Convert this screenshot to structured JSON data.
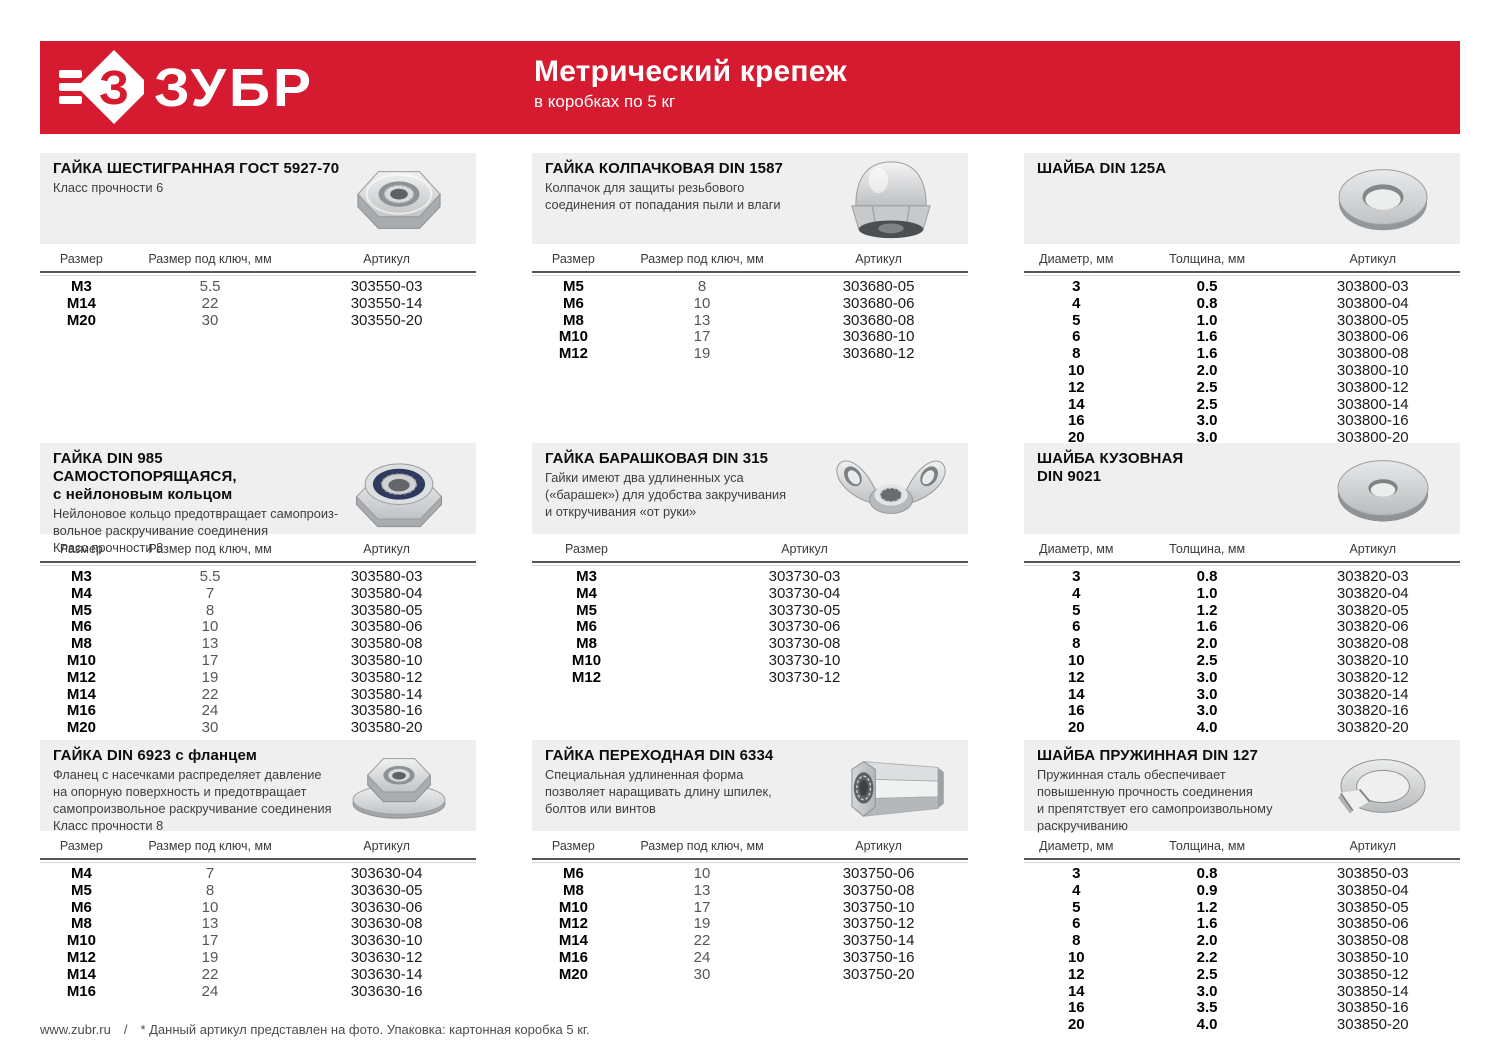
{
  "theme": {
    "brand_red": "#d61b30",
    "card_gray": "#efefef"
  },
  "header": {
    "logo_text": "ЗУБР",
    "title": "Метрический крепеж",
    "subtitle": "в коробках по 5 кг"
  },
  "footer": {
    "site": "www.zubr.ru",
    "separator": "/",
    "note": "* Данный артикул представлен на фото. Упаковка: картонная коробка 5 кг."
  },
  "sections": [
    {
      "title_lines": [
        "ГАЙКА ШЕСТИГРАННАЯ ГОСТ 5927-70"
      ],
      "description": [
        "Класс прочности 6"
      ],
      "image": "hex-nut",
      "columns": [
        "Размер",
        "Размер под ключ, мм",
        "Артикул"
      ],
      "values_bold": false,
      "rows": [
        [
          "М3",
          "5.5",
          "303550-03"
        ],
        [
          "М14",
          "22",
          "303550-14"
        ],
        [
          "М20",
          "30",
          "303550-20"
        ]
      ]
    },
    {
      "title_lines": [
        "ГАЙКА КОЛПАЧКОВАЯ DIN 1587"
      ],
      "description": [
        "Колпачок для защиты резьбового",
        "соединения от попадания пыли и влаги"
      ],
      "image": "cap-nut",
      "columns": [
        "Размер",
        "Размер под ключ, мм",
        "Артикул"
      ],
      "values_bold": false,
      "rows": [
        [
          "М5",
          "8",
          "303680-05"
        ],
        [
          "М6",
          "10",
          "303680-06"
        ],
        [
          "М8",
          "13",
          "303680-08"
        ],
        [
          "М10",
          "17",
          "303680-10"
        ],
        [
          "М12",
          "19",
          "303680-12"
        ]
      ]
    },
    {
      "title_lines": [
        "ШАЙБА DIN 125А"
      ],
      "description": [],
      "image": "washer-flat",
      "columns": [
        "Диаметр, мм",
        "Толщина, мм",
        "Артикул"
      ],
      "values_bold": true,
      "rows": [
        [
          "3",
          "0.5",
          "303800-03"
        ],
        [
          "4",
          "0.8",
          "303800-04"
        ],
        [
          "5",
          "1.0",
          "303800-05"
        ],
        [
          "6",
          "1.6",
          "303800-06"
        ],
        [
          "8",
          "1.6",
          "303800-08"
        ],
        [
          "10",
          "2.0",
          "303800-10"
        ],
        [
          "12",
          "2.5",
          "303800-12"
        ],
        [
          "14",
          "2.5",
          "303800-14"
        ],
        [
          "16",
          "3.0",
          "303800-16"
        ],
        [
          "20",
          "3.0",
          "303800-20"
        ]
      ]
    },
    {
      "title_lines": [
        "ГАЙКА DIN 985 САМОСТОПОРЯЩАЯСЯ,",
        "с нейлоновым кольцом"
      ],
      "description": [
        "Нейлоновое кольцо предотвращает самопроиз-",
        "вольное раскручивание соединения",
        "Класс прочности 8"
      ],
      "image": "lock-nut",
      "columns": [
        "Размер",
        "Размер под ключ, мм",
        "Артикул"
      ],
      "values_bold": false,
      "rows": [
        [
          "М3",
          "5.5",
          "303580-03"
        ],
        [
          "М4",
          "7",
          "303580-04"
        ],
        [
          "М5",
          "8",
          "303580-05"
        ],
        [
          "М6",
          "10",
          "303580-06"
        ],
        [
          "М8",
          "13",
          "303580-08"
        ],
        [
          "М10",
          "17",
          "303580-10"
        ],
        [
          "М12",
          "19",
          "303580-12"
        ],
        [
          "М14",
          "22",
          "303580-14"
        ],
        [
          "М16",
          "24",
          "303580-16"
        ],
        [
          "М20",
          "30",
          "303580-20"
        ]
      ]
    },
    {
      "title_lines": [
        "ГАЙКА БАРАШКОВАЯ DIN 315"
      ],
      "description": [
        "Гайки имеют два удлиненных уса",
        "(«барашек») для удобства закручивания",
        "и откручивания «от руки»"
      ],
      "image": "wing-nut",
      "columns": [
        "Размер",
        "Артикул"
      ],
      "values_bold": false,
      "rows": [
        [
          "М3",
          "303730-03"
        ],
        [
          "М4",
          "303730-04"
        ],
        [
          "М5",
          "303730-05"
        ],
        [
          "М6",
          "303730-06"
        ],
        [
          "М8",
          "303730-08"
        ],
        [
          "М10",
          "303730-10"
        ],
        [
          "М12",
          "303730-12"
        ]
      ]
    },
    {
      "title_lines": [
        "ШАЙБА КУЗОВНАЯ",
        "DIN 9021"
      ],
      "description": [],
      "image": "washer-fender",
      "columns": [
        "Диаметр, мм",
        "Толщина, мм",
        "Артикул"
      ],
      "values_bold": true,
      "rows": [
        [
          "3",
          "0.8",
          "303820-03"
        ],
        [
          "4",
          "1.0",
          "303820-04"
        ],
        [
          "5",
          "1.2",
          "303820-05"
        ],
        [
          "6",
          "1.6",
          "303820-06"
        ],
        [
          "8",
          "2.0",
          "303820-08"
        ],
        [
          "10",
          "2.5",
          "303820-10"
        ],
        [
          "12",
          "3.0",
          "303820-12"
        ],
        [
          "14",
          "3.0",
          "303820-14"
        ],
        [
          "16",
          "3.0",
          "303820-16"
        ],
        [
          "20",
          "4.0",
          "303820-20"
        ]
      ]
    },
    {
      "title_lines": [
        "ГАЙКА DIN 6923 с фланцем"
      ],
      "description": [
        "Фланец с насечками распределяет давление",
        "на опорную поверхность и предотвращает",
        "самопроизвольное раскручивание соединения",
        "Класс прочности 8"
      ],
      "image": "flange-nut",
      "columns": [
        "Размер",
        "Размер под ключ, мм",
        "Артикул"
      ],
      "values_bold": false,
      "rows": [
        [
          "М4",
          "7",
          "303630-04"
        ],
        [
          "М5",
          "8",
          "303630-05"
        ],
        [
          "М6",
          "10",
          "303630-06"
        ],
        [
          "М8",
          "13",
          "303630-08"
        ],
        [
          "М10",
          "17",
          "303630-10"
        ],
        [
          "М12",
          "19",
          "303630-12"
        ],
        [
          "М14",
          "22",
          "303630-14"
        ],
        [
          "М16",
          "24",
          "303630-16"
        ]
      ]
    },
    {
      "title_lines": [
        "ГАЙКА ПЕРЕХОДНАЯ DIN 6334"
      ],
      "description": [
        "Специальная удлиненная форма",
        "позволяет наращивать длину шпилек,",
        "болтов или винтов"
      ],
      "image": "coupling-nut",
      "columns": [
        "Размер",
        "Размер под ключ, мм",
        "Артикул"
      ],
      "values_bold": false,
      "rows": [
        [
          "М6",
          "10",
          "303750-06"
        ],
        [
          "М8",
          "13",
          "303750-08"
        ],
        [
          "М10",
          "17",
          "303750-10"
        ],
        [
          "М12",
          "19",
          "303750-12"
        ],
        [
          "М14",
          "22",
          "303750-14"
        ],
        [
          "М16",
          "24",
          "303750-16"
        ],
        [
          "М20",
          "30",
          "303750-20"
        ]
      ]
    },
    {
      "title_lines": [
        "ШАЙБА ПРУЖИННАЯ DIN 127"
      ],
      "description": [
        "Пружинная сталь обеспечивает",
        "повышенную прочность соединения",
        "и препятствует его самопроизвольному",
        "раскручиванию"
      ],
      "image": "spring-washer",
      "columns": [
        "Диаметр, мм",
        "Толщина, мм",
        "Артикул"
      ],
      "values_bold": true,
      "rows": [
        [
          "3",
          "0.8",
          "303850-03"
        ],
        [
          "4",
          "0.9",
          "303850-04"
        ],
        [
          "5",
          "1.2",
          "303850-05"
        ],
        [
          "6",
          "1.6",
          "303850-06"
        ],
        [
          "8",
          "2.0",
          "303850-08"
        ],
        [
          "10",
          "2.2",
          "303850-10"
        ],
        [
          "12",
          "2.5",
          "303850-12"
        ],
        [
          "14",
          "3.0",
          "303850-14"
        ],
        [
          "16",
          "3.5",
          "303850-16"
        ],
        [
          "20",
          "4.0",
          "303850-20"
        ]
      ]
    }
  ]
}
